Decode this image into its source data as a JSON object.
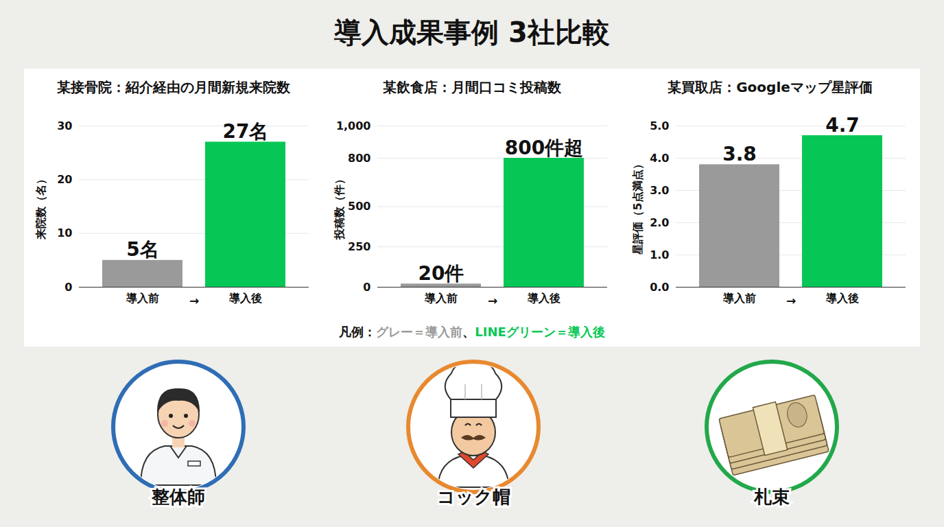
{
  "title": "導入成果事例 3社比較",
  "chart_data": [
    {
      "type": "bar",
      "title": "某接骨院：紹介経由の月間新規来院数",
      "categories": [
        "導入前",
        "導入後"
      ],
      "values": [
        5,
        27
      ],
      "value_labels": [
        "5名",
        "27名"
      ],
      "colors": [
        "#9a9a9a",
        "#06c755"
      ],
      "ylabel": "来院数（名）",
      "ylim": [
        0,
        30
      ],
      "yticks": [
        0,
        10,
        20,
        30
      ],
      "grid": true,
      "data_labels": true,
      "annotations": [
        "→"
      ]
    },
    {
      "type": "bar",
      "title": "某飲食店：月間口コミ投稿数",
      "categories": [
        "導入前",
        "導入後"
      ],
      "values": [
        20,
        800
      ],
      "value_labels": [
        "20件",
        "800件超"
      ],
      "colors": [
        "#9a9a9a",
        "#06c755"
      ],
      "ylabel": "投稿数（件）",
      "ylim": [
        0,
        1000
      ],
      "yticks": [
        0,
        250,
        500,
        800,
        1000
      ],
      "grid": true,
      "data_labels": true,
      "annotations": [
        "→"
      ]
    },
    {
      "type": "bar",
      "title": "某買取店：Googleマップ星評価",
      "categories": [
        "導入前",
        "導入後"
      ],
      "values": [
        3.8,
        4.7
      ],
      "colors": [
        "#9a9a9a",
        "#06c755"
      ],
      "ylabel": "星評価（5点満点）",
      "ylim": [
        0,
        5
      ],
      "yticks": [
        0,
        1,
        2,
        3,
        4,
        5
      ],
      "grid": true,
      "data_labels": true,
      "annotations": [
        "→"
      ]
    }
  ],
  "legend": {
    "title": "凡例：",
    "separator": "、",
    "items": [
      {
        "text": "グレー＝導入前",
        "color": "#9a9a9a"
      },
      {
        "text": "LINEグリーン＝導入後",
        "color": "#06c755"
      }
    ]
  },
  "icons": [
    {
      "label": "整体師",
      "color": "#2f6db5"
    },
    {
      "label": "コック帽",
      "color": "#e8892f"
    },
    {
      "label": "札束",
      "color": "#22a84a"
    }
  ]
}
